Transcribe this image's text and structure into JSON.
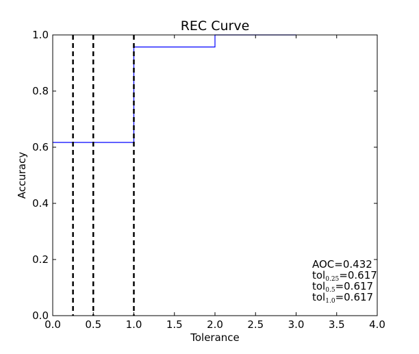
{
  "chart_data": {
    "type": "line",
    "title": "REC Curve",
    "xlabel": "Tolerance",
    "ylabel": "Accuracy",
    "xlim": [
      0.0,
      4.0
    ],
    "ylim": [
      0.0,
      1.0
    ],
    "xticks": [
      "0.0",
      "0.5",
      "1.0",
      "1.5",
      "2.0",
      "2.5",
      "3.0",
      "3.5",
      "4.0"
    ],
    "yticks": [
      "0.0",
      "0.2",
      "0.4",
      "0.6",
      "0.8",
      "1.0"
    ],
    "grid": false,
    "series": [
      {
        "style": "step",
        "color": "#0000ff",
        "x": [
          0.0,
          1.0,
          1.0,
          2.0,
          2.0,
          3.0
        ],
        "y": [
          0.617,
          0.617,
          0.957,
          0.957,
          1.0,
          1.0
        ]
      }
    ],
    "vlines": {
      "x": [
        0.25,
        0.5,
        1.0
      ],
      "color": "#000000",
      "style": "dashed"
    },
    "annotations": [
      {
        "text": "AOC=0.432"
      },
      {
        "prefix": "tol",
        "sub": "0.25",
        "value": "=0.617"
      },
      {
        "prefix": "tol",
        "sub": "0.5",
        "value": "=0.617"
      },
      {
        "prefix": "tol",
        "sub": "1.0",
        "value": "=0.617"
      }
    ]
  }
}
